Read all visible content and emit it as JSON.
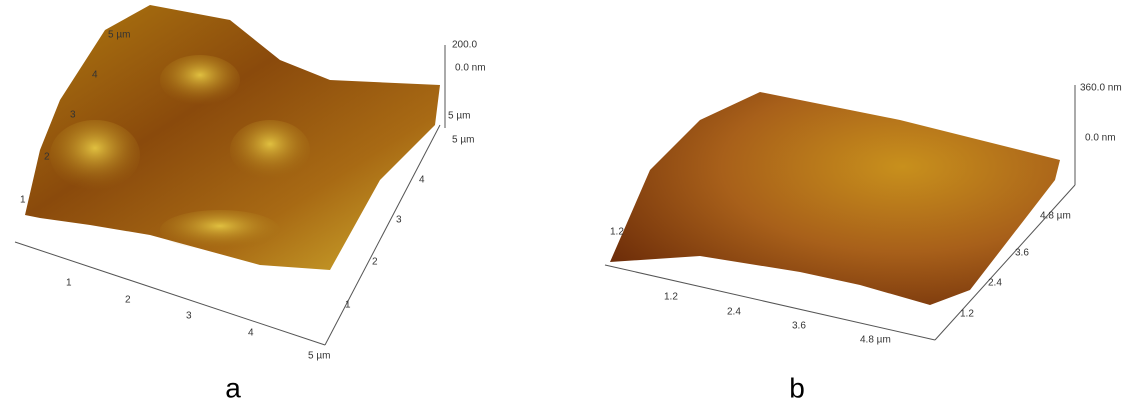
{
  "panels": [
    {
      "caption": "a",
      "z_labels": [
        "200.0",
        "0.0 nm",
        "5 µm"
      ],
      "left_labels": [
        "5 µm",
        "4",
        "3",
        "2",
        "1"
      ],
      "bottom_labels": [
        "1",
        "2",
        "3",
        "4",
        "5 µm"
      ],
      "right_labels": [
        "1",
        "2",
        "3",
        "4",
        "5 µm"
      ]
    },
    {
      "caption": "b",
      "z_labels": [
        "360.0 nm",
        "0.0 nm"
      ],
      "left_labels": [
        "1.2"
      ],
      "bottom_labels": [
        "1.2",
        "2.4",
        "3.6",
        "4.8 µm"
      ],
      "right_labels": [
        "1.2",
        "2.4",
        "3.6",
        "4.8 µm"
      ]
    }
  ]
}
